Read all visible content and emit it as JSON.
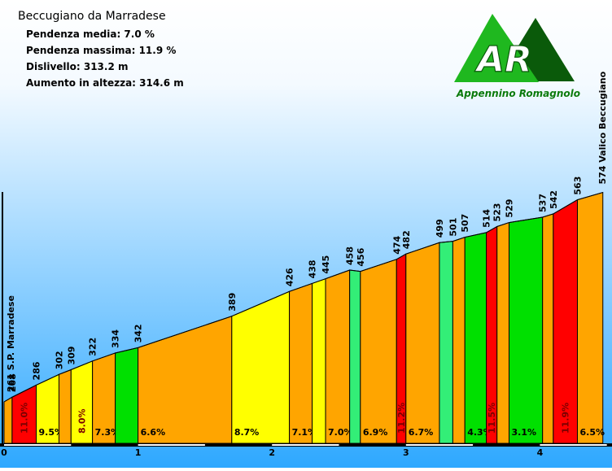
{
  "header": {
    "title": "Beccugiano da Marradese",
    "stats": [
      "Pendenza media: 7.0 %",
      "Pendenza massima: 11.9 %",
      "Dislivello: 313.2 m",
      "Aumento in altezza: 314.6 m"
    ]
  },
  "logo": {
    "letters": "AR",
    "caption": "Appennino Romagnolo"
  },
  "chart_data": {
    "type": "area",
    "title": "Beccugiano da Marradese",
    "xlabel": "",
    "ylabel": "",
    "xlim": [
      0,
      4.5
    ],
    "ylim": [
      240,
      580
    ],
    "x_ticks": [
      0,
      1,
      2,
      3,
      4
    ],
    "x_tick_labels": [
      "0",
      "1",
      "2",
      "3",
      "4"
    ],
    "start_label": "261 S.P. Marradese",
    "end_label": "574 Valico Beccugiano",
    "points": [
      {
        "x": 0.0,
        "elev": 261,
        "label": ""
      },
      {
        "x": 0.06,
        "elev": 268,
        "label": "268"
      },
      {
        "x": 0.24,
        "elev": 286,
        "label": "286"
      },
      {
        "x": 0.41,
        "elev": 302,
        "label": "302"
      },
      {
        "x": 0.5,
        "elev": 309,
        "label": "309"
      },
      {
        "x": 0.66,
        "elev": 322,
        "label": "322"
      },
      {
        "x": 0.83,
        "elev": 334,
        "label": "334"
      },
      {
        "x": 1.0,
        "elev": 342,
        "label": "342"
      },
      {
        "x": 1.7,
        "elev": 389,
        "label": "389"
      },
      {
        "x": 2.13,
        "elev": 426,
        "label": "426"
      },
      {
        "x": 2.3,
        "elev": 438,
        "label": "438"
      },
      {
        "x": 2.4,
        "elev": 445,
        "label": "445"
      },
      {
        "x": 2.58,
        "elev": 458,
        "label": "458"
      },
      {
        "x": 2.66,
        "elev": 456,
        "label": "456"
      },
      {
        "x": 2.93,
        "elev": 474,
        "label": "474"
      },
      {
        "x": 3.0,
        "elev": 482,
        "label": "482"
      },
      {
        "x": 3.25,
        "elev": 499,
        "label": "499"
      },
      {
        "x": 3.35,
        "elev": 501,
        "label": "501"
      },
      {
        "x": 3.44,
        "elev": 507,
        "label": "507"
      },
      {
        "x": 3.6,
        "elev": 514,
        "label": "514"
      },
      {
        "x": 3.68,
        "elev": 523,
        "label": "523"
      },
      {
        "x": 3.77,
        "elev": 529,
        "label": "529"
      },
      {
        "x": 4.02,
        "elev": 537,
        "label": "537"
      },
      {
        "x": 4.1,
        "elev": 542,
        "label": "542"
      },
      {
        "x": 4.28,
        "elev": 563,
        "label": "563"
      },
      {
        "x": 4.47,
        "elev": 574,
        "label": ""
      }
    ],
    "segments": [
      {
        "from": 0.0,
        "to": 0.06,
        "color": "#FFA500",
        "grade": ""
      },
      {
        "from": 0.06,
        "to": 0.24,
        "color": "#FF0000",
        "grade": "11.0%",
        "vertical": true
      },
      {
        "from": 0.24,
        "to": 0.41,
        "color": "#FFFF00",
        "grade": "9.5%"
      },
      {
        "from": 0.41,
        "to": 0.5,
        "color": "#FFA500",
        "grade": ""
      },
      {
        "from": 0.5,
        "to": 0.66,
        "color": "#FFFF00",
        "grade": "8.0%",
        "vertical": true
      },
      {
        "from": 0.66,
        "to": 0.83,
        "color": "#FFA500",
        "grade": "7.3%"
      },
      {
        "from": 0.83,
        "to": 1.0,
        "color": "#00E000",
        "grade": ""
      },
      {
        "from": 1.0,
        "to": 1.7,
        "color": "#FFA500",
        "grade": "6.6%"
      },
      {
        "from": 1.7,
        "to": 2.13,
        "color": "#FFFF00",
        "grade": "8.7%"
      },
      {
        "from": 2.13,
        "to": 2.3,
        "color": "#FFA500",
        "grade": "7.1%"
      },
      {
        "from": 2.3,
        "to": 2.4,
        "color": "#FFFF00",
        "grade": ""
      },
      {
        "from": 2.4,
        "to": 2.58,
        "color": "#FFA500",
        "grade": "7.0%"
      },
      {
        "from": 2.58,
        "to": 2.66,
        "color": "#33EE77",
        "grade": ""
      },
      {
        "from": 2.66,
        "to": 2.93,
        "color": "#FFA500",
        "grade": "6.9%"
      },
      {
        "from": 2.93,
        "to": 3.0,
        "color": "#FF0000",
        "grade": "11.2%",
        "vertical": true
      },
      {
        "from": 3.0,
        "to": 3.25,
        "color": "#FFA500",
        "grade": "6.7%"
      },
      {
        "from": 3.25,
        "to": 3.35,
        "color": "#33EE77",
        "grade": ""
      },
      {
        "from": 3.35,
        "to": 3.44,
        "color": "#FFA500",
        "grade": ""
      },
      {
        "from": 3.44,
        "to": 3.6,
        "color": "#00E000",
        "grade": "4.3%"
      },
      {
        "from": 3.6,
        "to": 3.68,
        "color": "#FF0000",
        "grade": "11.5%",
        "vertical": true
      },
      {
        "from": 3.68,
        "to": 3.77,
        "color": "#FFA500",
        "grade": ""
      },
      {
        "from": 3.77,
        "to": 4.02,
        "color": "#00E000",
        "grade": "3.1%"
      },
      {
        "from": 4.02,
        "to": 4.1,
        "color": "#FFA500",
        "grade": ""
      },
      {
        "from": 4.1,
        "to": 4.28,
        "color": "#FF0000",
        "grade": "11.9%",
        "vertical": true
      },
      {
        "from": 4.28,
        "to": 4.47,
        "color": "#FFA500",
        "grade": "6.5%"
      }
    ],
    "colors": {
      "sky_top": "#FFFFFF",
      "sky_bottom": "#2EA8FF",
      "logo_green": "#1FB81F",
      "logo_dark_green": "#0A5A0A"
    }
  }
}
